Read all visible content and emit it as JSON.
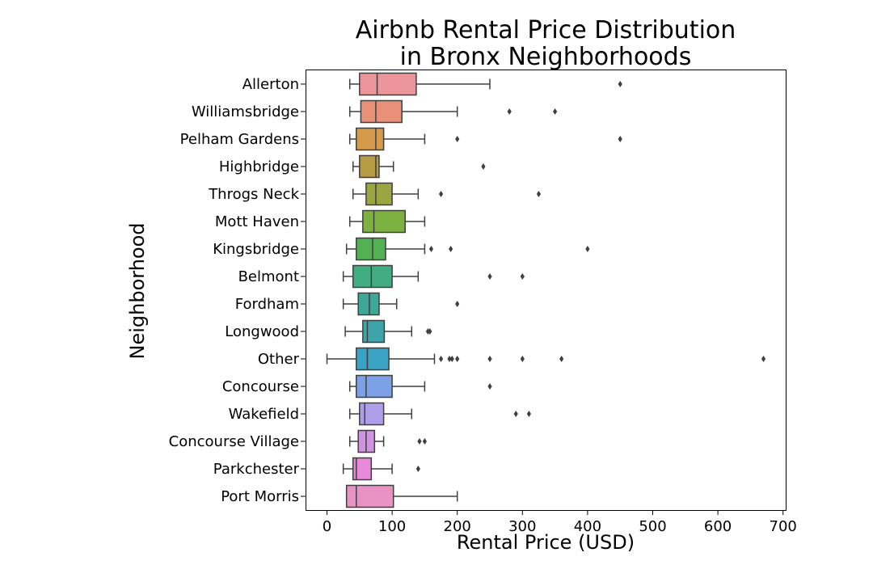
{
  "chart_data": {
    "type": "boxplot",
    "orientation": "horizontal",
    "title": "Airbnb Rental Price Distribution\nin Bronx Neighborhoods",
    "xlabel": "Rental Price (USD)",
    "ylabel": "Neighborhood",
    "xlim": [
      -32,
      705
    ],
    "xticks": [
      0,
      100,
      200,
      300,
      400,
      500,
      600,
      700
    ],
    "grid": false,
    "legend": "none",
    "categories": [
      {
        "name": "Allerton",
        "color": "#ec969c",
        "whisker_low": 35,
        "q1": 50,
        "median": 77,
        "q3": 137,
        "whisker_high": 250,
        "outliers": [
          450
        ]
      },
      {
        "name": "Williamsbridge",
        "color": "#e89178",
        "whisker_low": 35,
        "q1": 52,
        "median": 75,
        "q3": 115,
        "whisker_high": 200,
        "outliers": [
          280,
          350
        ]
      },
      {
        "name": "Pelham Gardens",
        "color": "#d49a4a",
        "whisker_low": 35,
        "q1": 45,
        "median": 75,
        "q3": 87,
        "whisker_high": 150,
        "outliers": [
          200,
          450
        ]
      },
      {
        "name": "Highbridge",
        "color": "#b59b41",
        "whisker_low": 40,
        "q1": 50,
        "median": 75,
        "q3": 80,
        "whisker_high": 102,
        "outliers": [
          240
        ]
      },
      {
        "name": "Throgs Neck",
        "color": "#9ca544",
        "whisker_low": 40,
        "q1": 60,
        "median": 75,
        "q3": 100,
        "whisker_high": 140,
        "outliers": [
          175,
          325
        ]
      },
      {
        "name": "Mott Haven",
        "color": "#7db241",
        "whisker_low": 35,
        "q1": 55,
        "median": 72,
        "q3": 120,
        "whisker_high": 150,
        "outliers": []
      },
      {
        "name": "Kingsbridge",
        "color": "#53b154",
        "whisker_low": 30,
        "q1": 45,
        "median": 70,
        "q3": 90,
        "whisker_high": 150,
        "outliers": [
          160,
          190,
          400
        ]
      },
      {
        "name": "Belmont",
        "color": "#43ad82",
        "whisker_low": 25,
        "q1": 40,
        "median": 68,
        "q3": 100,
        "whisker_high": 140,
        "outliers": [
          250,
          300
        ]
      },
      {
        "name": "Fordham",
        "color": "#3ea898",
        "whisker_low": 25,
        "q1": 48,
        "median": 65,
        "q3": 80,
        "whisker_high": 107,
        "outliers": [
          200
        ]
      },
      {
        "name": "Longwood",
        "color": "#3da4a9",
        "whisker_low": 28,
        "q1": 55,
        "median": 62,
        "q3": 88,
        "whisker_high": 130,
        "outliers": [
          155,
          158
        ]
      },
      {
        "name": "Other",
        "color": "#3aa2c4",
        "whisker_low": 0,
        "q1": 45,
        "median": 62,
        "q3": 95,
        "whisker_high": 165,
        "outliers": [
          175,
          188,
          192,
          200,
          250,
          300,
          360,
          670
        ]
      },
      {
        "name": "Concourse",
        "color": "#7ca2e5",
        "whisker_low": 35,
        "q1": 45,
        "median": 60,
        "q3": 100,
        "whisker_high": 150,
        "outliers": [
          250
        ]
      },
      {
        "name": "Wakefield",
        "color": "#ae9ee9",
        "whisker_low": 35,
        "q1": 50,
        "median": 58,
        "q3": 87,
        "whisker_high": 130,
        "outliers": [
          290,
          310
        ]
      },
      {
        "name": "Concourse Village",
        "color": "#cf93e0",
        "whisker_low": 35,
        "q1": 48,
        "median": 60,
        "q3": 73,
        "whisker_high": 87,
        "outliers": [
          142,
          150
        ]
      },
      {
        "name": "Parkchester",
        "color": "#e889d9",
        "whisker_low": 25,
        "q1": 40,
        "median": 45,
        "q3": 68,
        "whisker_high": 100,
        "outliers": [
          140
        ]
      },
      {
        "name": "Port Morris",
        "color": "#e992c4",
        "whisker_low": 30,
        "q1": 30,
        "median": 45,
        "q3": 102,
        "whisker_high": 200,
        "outliers": []
      }
    ]
  }
}
